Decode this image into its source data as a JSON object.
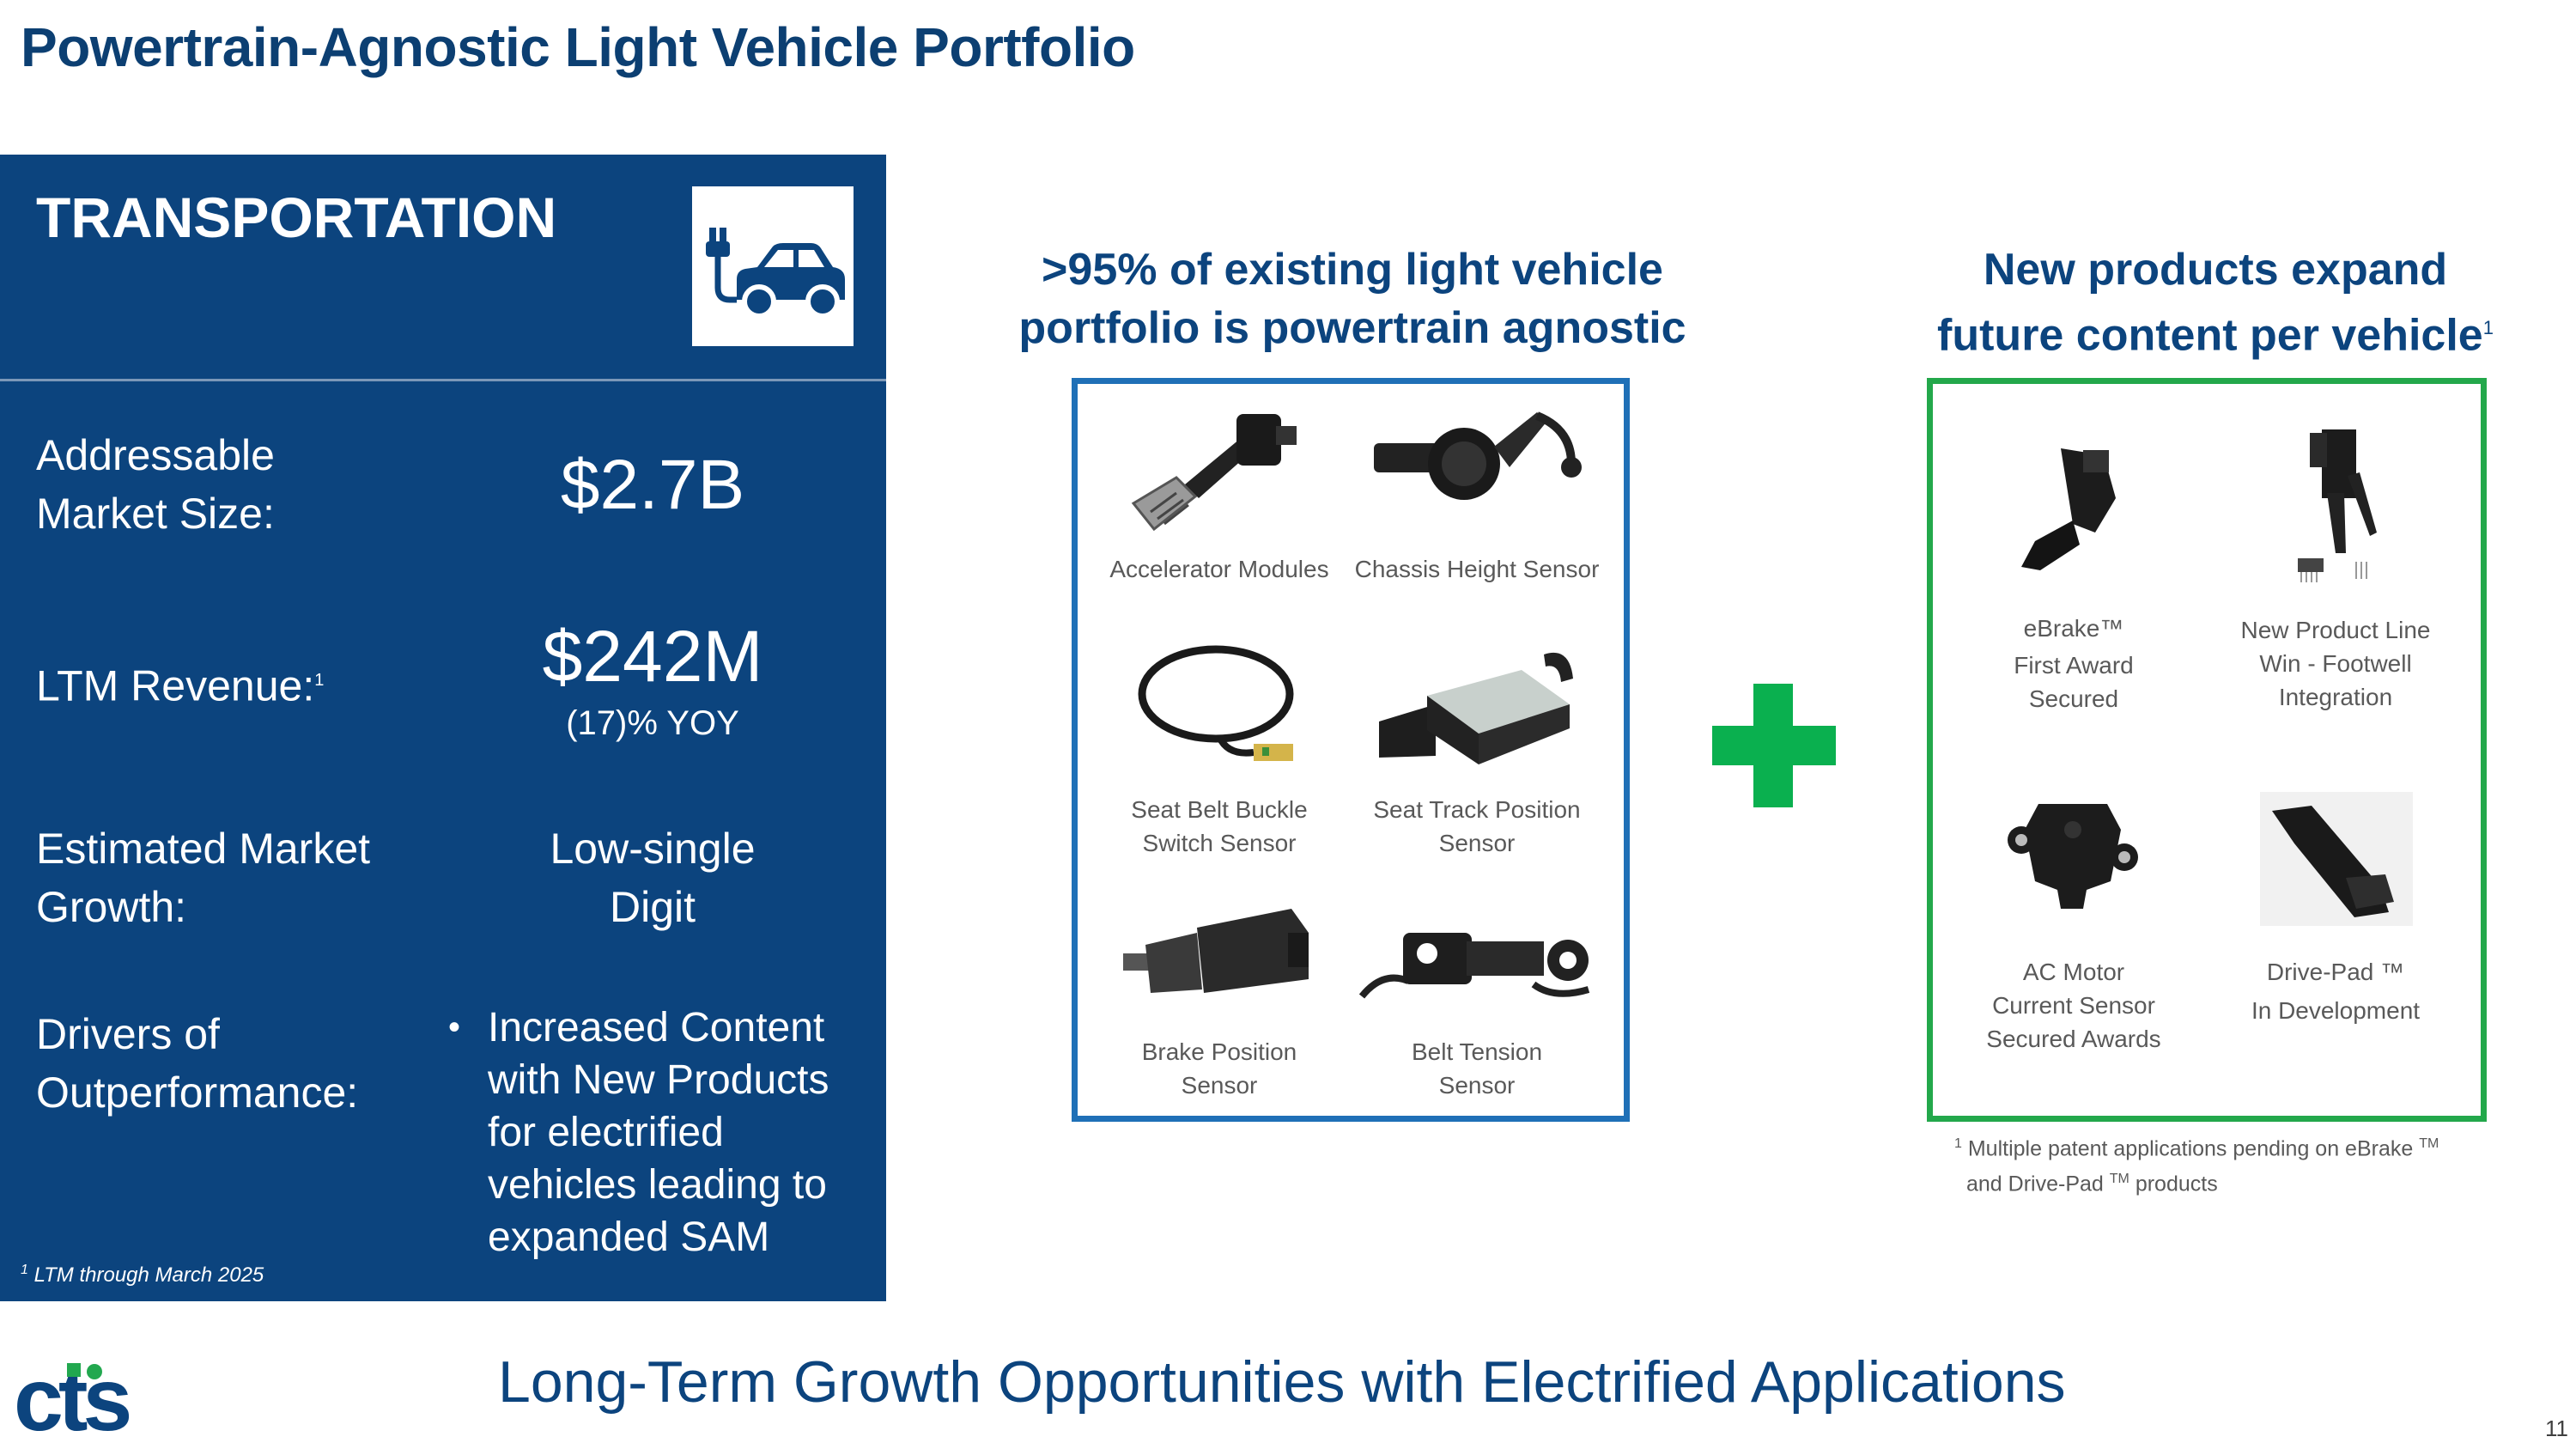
{
  "page_title": "Powertrain-Agnostic Light Vehicle Portfolio",
  "panel": {
    "title": "TRANSPORTATION",
    "rows": [
      {
        "label_lines": [
          "Addressable",
          "Market Size:"
        ],
        "value": "$2.7B"
      },
      {
        "label": "LTM Revenue:",
        "label_sup": "1",
        "value": "$242M",
        "sub_value": "(17)% YOY"
      },
      {
        "label_lines": [
          "Estimated Market",
          "Growth:"
        ],
        "value_lines": [
          "Low-single",
          "Digit"
        ]
      },
      {
        "label_lines": [
          "Drivers of",
          "Outperformance:"
        ],
        "bullets": [
          "Increased Content with New Products for electrified vehicles leading to expanded SAM"
        ]
      }
    ],
    "footnote_sup": "1",
    "footnote": "LTM through March 2025"
  },
  "existing": {
    "heading_lines": [
      ">95% of existing light vehicle",
      "portfolio is powertrain agnostic"
    ],
    "products": [
      {
        "caption_lines": [
          "Accelerator Modules"
        ],
        "icon": "accelerator-pedal-icon"
      },
      {
        "caption_lines": [
          "Chassis Height Sensor"
        ],
        "icon": "chassis-sensor-icon"
      },
      {
        "caption_lines": [
          "Seat Belt Buckle",
          "Switch Sensor"
        ],
        "icon": "cable-sensor-icon"
      },
      {
        "caption_lines": [
          "Seat Track Position",
          "Sensor"
        ],
        "icon": "track-sensor-icon"
      },
      {
        "caption_lines": [
          "Brake Position",
          "Sensor"
        ],
        "icon": "brake-sensor-icon"
      },
      {
        "caption_lines": [
          "Belt Tension",
          "Sensor"
        ],
        "icon": "tension-sensor-icon"
      }
    ]
  },
  "new_products": {
    "heading_lines": [
      "New products expand",
      "future content per vehicle"
    ],
    "heading_sup": "1",
    "products": [
      {
        "caption_lines": [
          "eBrake™",
          "First Award",
          "Secured"
        ],
        "icon": "ebrake-pedal-icon"
      },
      {
        "caption_lines": [
          "New Product Line",
          "Win - Footwell",
          "Integration"
        ],
        "icon": "footwell-pedal-icon"
      },
      {
        "caption_lines": [
          "AC Motor",
          "Current Sensor",
          "Secured Awards"
        ],
        "icon": "current-sensor-icon"
      },
      {
        "caption_lines": [
          "Drive-Pad ™",
          "In Development"
        ],
        "icon": "drive-pad-icon"
      }
    ],
    "footnote": {
      "sup": "1",
      "line1": "Multiple patent applications pending on eBrake",
      "tm1": "TM",
      "line2a": "and Drive-Pad",
      "tm2": "TM",
      "line2b": "products"
    }
  },
  "bottom_title": "Long-Term Growth Opportunities with Electrified Applications",
  "page_number": "11",
  "logo_text": "cts",
  "colors": {
    "navy": "#0c447e",
    "blue_frame": "#1f70b7",
    "green_frame": "#23a84b",
    "plus_green": "#0ab04f"
  }
}
